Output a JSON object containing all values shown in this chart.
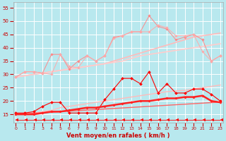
{
  "x": [
    0,
    1,
    2,
    3,
    4,
    5,
    6,
    7,
    8,
    9,
    10,
    11,
    12,
    13,
    14,
    15,
    16,
    17,
    18,
    19,
    20,
    21,
    22,
    23
  ],
  "series": [
    {
      "name": "jagged_top",
      "color": "#ff8888",
      "linewidth": 0.7,
      "marker": "D",
      "markersize": 1.8,
      "values": [
        29,
        31,
        31,
        30.5,
        37.5,
        37.5,
        32,
        35,
        37,
        35,
        37,
        44,
        44.5,
        46,
        46,
        52,
        48,
        47,
        43,
        44,
        45,
        43,
        35,
        37
      ]
    },
    {
      "name": "trend_upper",
      "color": "#ffbbbb",
      "linewidth": 1.2,
      "marker": null,
      "markersize": 0,
      "values": [
        29,
        29.5,
        30,
        30.5,
        31,
        31.5,
        32,
        32.5,
        33,
        33.5,
        34,
        35,
        36,
        37,
        38,
        39,
        40,
        41,
        42,
        43,
        44,
        44.5,
        45,
        45.5
      ]
    },
    {
      "name": "jagged_upper2",
      "color": "#ffaaaa",
      "linewidth": 0.7,
      "marker": "D",
      "markersize": 1.8,
      "values": [
        29,
        31,
        31,
        30.5,
        30,
        37.5,
        33,
        32.5,
        37,
        35,
        37,
        43.5,
        44.5,
        46,
        46,
        46,
        48.5,
        47.5,
        44.5,
        44.5,
        45,
        38.5,
        35,
        37
      ]
    },
    {
      "name": "trend_mid",
      "color": "#ffcccc",
      "linewidth": 1.2,
      "marker": null,
      "markersize": 0,
      "values": [
        29,
        29.5,
        30,
        30.5,
        31,
        31.5,
        32,
        32.5,
        33,
        33.5,
        34,
        34.5,
        35,
        36,
        37,
        37.5,
        38,
        38.5,
        39,
        39.5,
        40,
        40.5,
        41,
        41.5
      ]
    },
    {
      "name": "jagged_mid_red",
      "color": "#ff0000",
      "linewidth": 0.8,
      "marker": "D",
      "markersize": 2.0,
      "values": [
        15.5,
        15.5,
        16,
        18,
        19.5,
        19.5,
        15.5,
        15.5,
        15.5,
        15.5,
        20.5,
        24.5,
        28.5,
        28.5,
        26.5,
        31,
        23,
        26.5,
        23,
        23,
        24.5,
        24.5,
        22.5,
        20
      ]
    },
    {
      "name": "trend_lower_upper",
      "color": "#ffbbbb",
      "linewidth": 1.0,
      "marker": null,
      "markersize": 0,
      "values": [
        15,
        15.2,
        15.5,
        16,
        16.5,
        17.5,
        18,
        18.5,
        19,
        19.5,
        20,
        20.5,
        21,
        21.5,
        22,
        22.5,
        23,
        23.5,
        23.8,
        24,
        24.5,
        25,
        25.5,
        26
      ]
    },
    {
      "name": "flat_red_thick",
      "color": "#ff2222",
      "linewidth": 1.8,
      "marker": "D",
      "markersize": 1.8,
      "values": [
        15,
        15,
        15,
        15.5,
        16,
        16,
        16.5,
        17,
        17.5,
        17.5,
        18,
        18.5,
        19,
        19.5,
        20,
        20,
        20.5,
        21,
        21,
        21.5,
        21.5,
        22,
        20,
        19.5
      ]
    },
    {
      "name": "trend_lower",
      "color": "#ff6666",
      "linewidth": 1.0,
      "marker": null,
      "markersize": 0,
      "values": [
        15,
        15.2,
        15.4,
        15.6,
        15.8,
        16.0,
        16.2,
        16.4,
        16.6,
        16.8,
        17.0,
        17.2,
        17.4,
        17.6,
        17.8,
        18.0,
        18.2,
        18.4,
        18.6,
        18.8,
        19.0,
        19.2,
        19.4,
        19.6
      ]
    },
    {
      "name": "arrows_bottom",
      "color": "#ff0000",
      "linewidth": 0.6,
      "marker": 4,
      "markersize": 3.5,
      "values": [
        13,
        13,
        13,
        13,
        13,
        13,
        13,
        13,
        13,
        13,
        13,
        13,
        13,
        13,
        13,
        13,
        13,
        13,
        13,
        13,
        13,
        13,
        13,
        13
      ]
    }
  ],
  "xlim": [
    -0.3,
    23.3
  ],
  "ylim": [
    12,
    57
  ],
  "yticks": [
    15,
    20,
    25,
    30,
    35,
    40,
    45,
    50,
    55
  ],
  "xticks": [
    0,
    1,
    2,
    3,
    4,
    5,
    6,
    7,
    8,
    9,
    10,
    11,
    12,
    13,
    14,
    15,
    16,
    17,
    18,
    19,
    20,
    21,
    22,
    23
  ],
  "xlabel": "Vent moyen/en rafales ( km/h )",
  "bgcolor": "#b8e8ee",
  "grid_color": "#ffffff",
  "tick_color": "#cc0000",
  "label_color": "#cc0000"
}
